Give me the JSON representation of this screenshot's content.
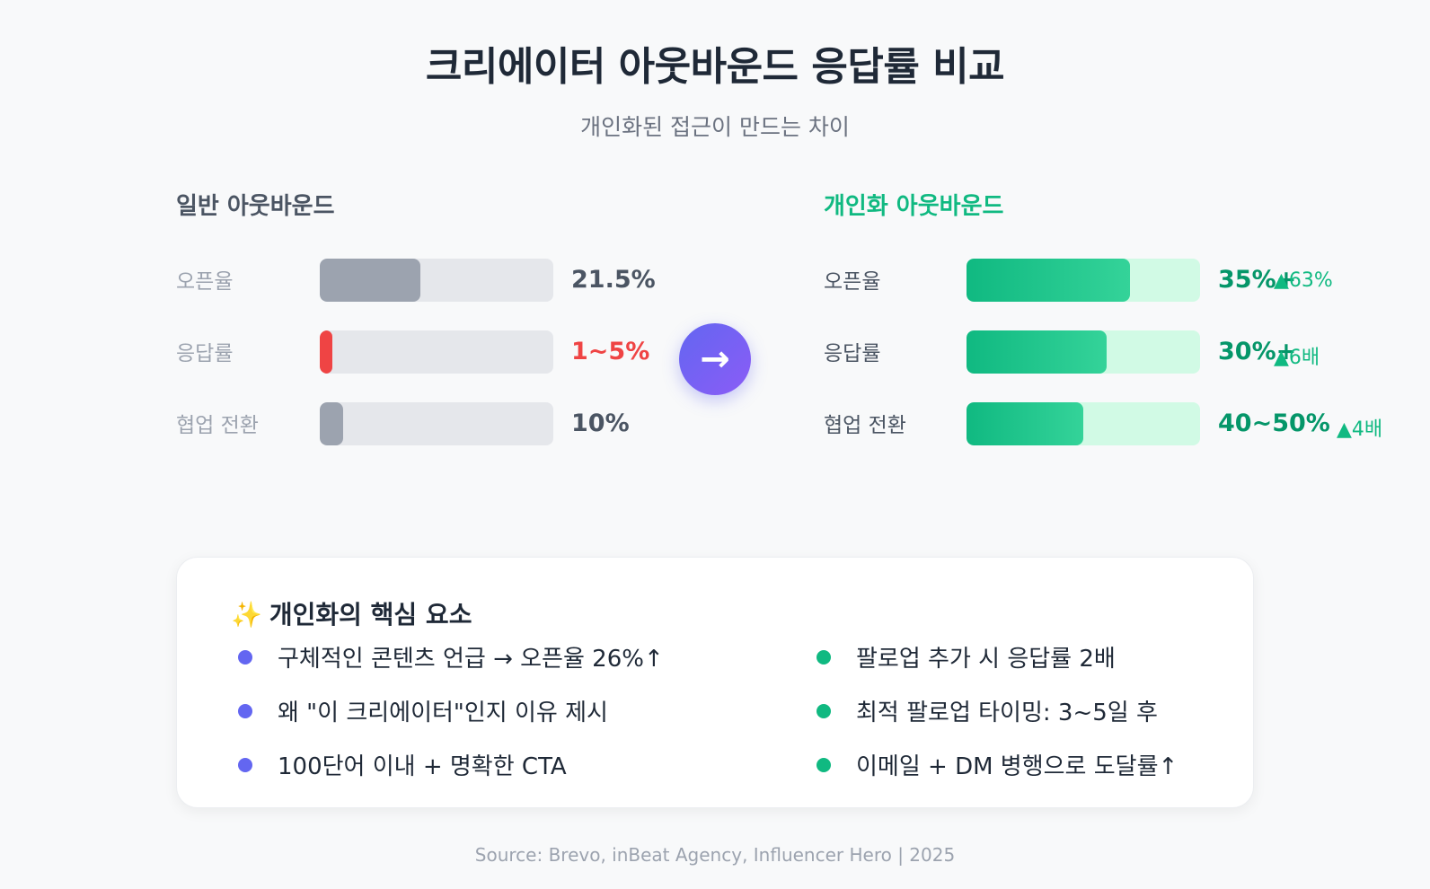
{
  "title": "크리에이터 아웃바운드 응답률 비교",
  "subtitle": "개인화된 접근이 만드는 차이",
  "colors": {
    "gray_bar": "#9ca3af",
    "red_bar": "#ef4444",
    "green_bar": "#10b981",
    "green_track": "#d1fae5",
    "gray_track": "#e5e7eb",
    "accent": "#6366f1"
  },
  "arrow_icon": "→",
  "chart_data": [
    {
      "type": "bar",
      "orientation": "horizontal",
      "title": "일반 아웃바운드",
      "categories": [
        "오픈율",
        "응답률",
        "협업 전환"
      ],
      "value_labels": [
        "21.5%",
        "1~5%",
        "10%"
      ],
      "fill_fractions": [
        0.43,
        0.05,
        0.1
      ],
      "bar_colors": [
        "#9ca3af",
        "#ef4444",
        "#9ca3af"
      ]
    },
    {
      "type": "bar",
      "orientation": "horizontal",
      "title": "개인화 아웃바운드",
      "categories": [
        "오픈율",
        "응답률",
        "협업 전환"
      ],
      "value_labels": [
        "35%+",
        "30%+",
        "40~50%"
      ],
      "badges": [
        "▲63%",
        "▲6배",
        "▲4배"
      ],
      "fill_fractions": [
        0.7,
        0.6,
        0.5
      ],
      "bar_colors": [
        "#10b981",
        "#10b981",
        "#10b981"
      ]
    }
  ],
  "card": {
    "icon": "✨",
    "title": "개인화의 핵심 요소",
    "left_items": [
      "구체적인 콘텐츠 언급 → 오픈율 26%↑",
      "왜 \"이 크리에이터\"인지 이유 제시",
      "100단어 이내 + 명확한 CTA"
    ],
    "right_items": [
      "팔로업 추가 시 응답률 2배",
      "최적 팔로업 타이밍: 3~5일 후",
      "이메일 + DM 병행으로 도달률↑"
    ]
  },
  "source": "Source: Brevo, inBeat Agency, Influencer Hero | 2025"
}
